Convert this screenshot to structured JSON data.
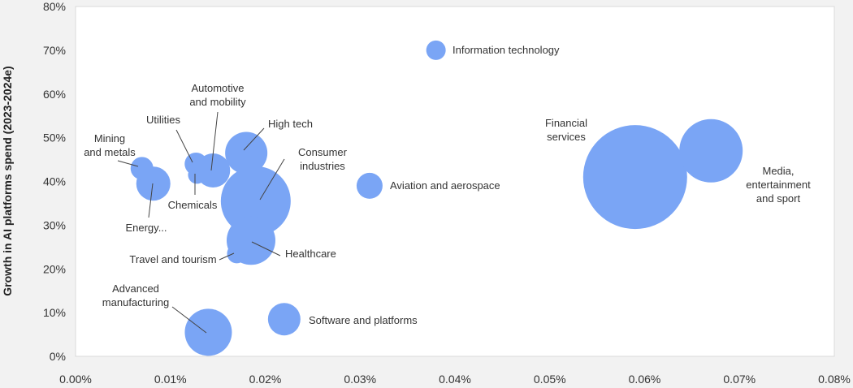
{
  "chart_data": {
    "type": "bubble",
    "title": "",
    "xlabel": "",
    "ylabel": "Growth in AI platforms spend (2023-2024e)",
    "xlim": [
      0,
      0.08
    ],
    "ylim": [
      0,
      80
    ],
    "x_ticks": [
      "0.00%",
      "0.01%",
      "0.02%",
      "0.03%",
      "0.04%",
      "0.05%",
      "0.06%",
      "0.07%",
      "0.08%"
    ],
    "y_ticks": [
      "0%",
      "10%",
      "20%",
      "30%",
      "40%",
      "50%",
      "60%",
      "70%",
      "80%"
    ],
    "grid": false,
    "bubble_color": "#7aa5f5",
    "points": [
      {
        "name": "Information technology",
        "label_lines": [
          "Information technology"
        ],
        "x": 0.038,
        "y": 70.0,
        "size": 12
      },
      {
        "name": "Financial services",
        "label_lines": [
          "Financial",
          "services"
        ],
        "x": 0.059,
        "y": 41.0,
        "size": 64
      },
      {
        "name": "Media, entertainment and sport",
        "label_lines": [
          "Media,",
          "entertainment",
          "and sport"
        ],
        "x": 0.067,
        "y": 47.0,
        "size": 39
      },
      {
        "name": "Aviation and aerospace",
        "label_lines": [
          "Aviation and aerospace"
        ],
        "x": 0.031,
        "y": 39.0,
        "size": 16
      },
      {
        "name": "Software and platforms",
        "label_lines": [
          "Software and platforms"
        ],
        "x": 0.022,
        "y": 8.5,
        "size": 20
      },
      {
        "name": "Consumer industries",
        "label_lines": [
          "Consumer",
          "industries"
        ],
        "x": 0.019,
        "y": 35.5,
        "size": 43
      },
      {
        "name": "Healthcare",
        "label_lines": [
          "Healthcare"
        ],
        "x": 0.0185,
        "y": 26.5,
        "size": 30
      },
      {
        "name": "High tech",
        "label_lines": [
          "High tech"
        ],
        "x": 0.018,
        "y": 46.5,
        "size": 26
      },
      {
        "name": "Automotive and mobility",
        "label_lines": [
          "Automotive",
          "and mobility"
        ],
        "x": 0.0145,
        "y": 42.5,
        "size": 21
      },
      {
        "name": "Utilities",
        "label_lines": [
          "Utilities"
        ],
        "x": 0.0127,
        "y": 44.0,
        "size": 14
      },
      {
        "name": "Chemicals",
        "label_lines": [
          "Chemicals"
        ],
        "x": 0.0128,
        "y": 41.5,
        "size": 11
      },
      {
        "name": "Mining and metals",
        "label_lines": [
          "Mining",
          "and metals"
        ],
        "x": 0.007,
        "y": 43.0,
        "size": 14
      },
      {
        "name": "Energy...",
        "label_lines": [
          "Energy..."
        ],
        "x": 0.0082,
        "y": 39.5,
        "size": 21
      },
      {
        "name": "Travel and tourism",
        "label_lines": [
          "Travel and tourism"
        ],
        "x": 0.017,
        "y": 23.5,
        "size": 12
      },
      {
        "name": "Advanced manufacturing",
        "label_lines": [
          "Advanced",
          "manufacturing"
        ],
        "x": 0.014,
        "y": 5.5,
        "size": 29
      }
    ]
  }
}
